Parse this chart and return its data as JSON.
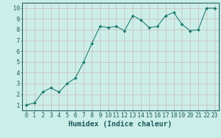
{
  "x": [
    0,
    1,
    2,
    3,
    4,
    5,
    6,
    7,
    8,
    9,
    10,
    11,
    12,
    13,
    14,
    15,
    16,
    17,
    18,
    19,
    20,
    21,
    22,
    23
  ],
  "y": [
    1.0,
    1.2,
    2.2,
    2.6,
    2.2,
    3.0,
    3.5,
    5.0,
    6.7,
    8.3,
    8.2,
    8.3,
    7.9,
    9.3,
    8.9,
    8.2,
    8.3,
    9.3,
    9.6,
    8.5,
    7.9,
    8.0,
    10.0,
    10.0
  ],
  "line_color": "#1a7a6e",
  "marker": "D",
  "marker_size": 2.0,
  "bg_color": "#cceee8",
  "grid_color": "#b0c8c8",
  "xlabel": "Humidex (Indice chaleur)",
  "xlim": [
    -0.5,
    23.5
  ],
  "ylim": [
    0.5,
    10.5
  ],
  "yticks": [
    1,
    2,
    3,
    4,
    5,
    6,
    7,
    8,
    9,
    10
  ],
  "xticks": [
    0,
    1,
    2,
    3,
    4,
    5,
    6,
    7,
    8,
    9,
    10,
    11,
    12,
    13,
    14,
    15,
    16,
    17,
    18,
    19,
    20,
    21,
    22,
    23
  ],
  "xlabel_fontsize": 7.5,
  "tick_fontsize": 6.0,
  "label_color": "#1a5a5a",
  "axis_color": "#1a5a5a",
  "grid_major_color": "#c8b8b8",
  "grid_minor_color": "#d8cece"
}
